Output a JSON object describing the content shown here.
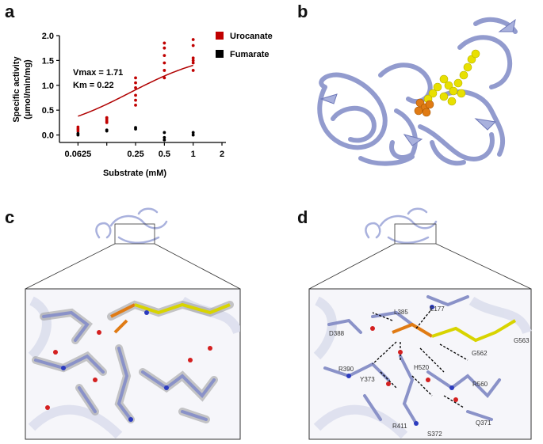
{
  "panels": {
    "a": "a",
    "b": "b",
    "c": "c",
    "d": "d"
  },
  "chart_data": {
    "type": "scatter",
    "xlabel": "Substrate (mM)",
    "ylabel_line1": "Specific activity",
    "ylabel_line2": "(µmol/min/mg)",
    "x_scale": "log2",
    "xlim": [
      0.04,
      2.2
    ],
    "ylim": [
      -0.15,
      2.0
    ],
    "x_ticks": [
      0.0625,
      0.125,
      0.25,
      0.5,
      1,
      2
    ],
    "x_tick_labels": [
      "0.0625",
      "",
      "0.25",
      "0.5",
      "1",
      "2"
    ],
    "y_ticks": [
      0.0,
      0.5,
      1.0,
      1.5,
      2.0
    ],
    "y_tick_labels": [
      "0.0",
      "0.5",
      "1.0",
      "1.5",
      "2.0"
    ],
    "annotation_vmax": "Vmax = 1.71",
    "annotation_km": "Km = 0.22",
    "vmax": 1.71,
    "km": 0.22,
    "legend_position": "top-right",
    "series": [
      {
        "name": "Urocanate",
        "color": "#c00000",
        "points": [
          [
            0.0625,
            0.08
          ],
          [
            0.0625,
            0.12
          ],
          [
            0.0625,
            0.16
          ],
          [
            0.125,
            0.25
          ],
          [
            0.125,
            0.28
          ],
          [
            0.125,
            0.32
          ],
          [
            0.125,
            0.35
          ],
          [
            0.25,
            0.6
          ],
          [
            0.25,
            0.7
          ],
          [
            0.25,
            0.8
          ],
          [
            0.25,
            0.95
          ],
          [
            0.25,
            1.05
          ],
          [
            0.25,
            1.15
          ],
          [
            0.5,
            1.15
          ],
          [
            0.5,
            1.3
          ],
          [
            0.5,
            1.45
          ],
          [
            0.5,
            1.6
          ],
          [
            0.5,
            1.75
          ],
          [
            0.5,
            1.85
          ],
          [
            1,
            1.3
          ],
          [
            1,
            1.45
          ],
          [
            1,
            1.5
          ],
          [
            1,
            1.55
          ],
          [
            1,
            1.8
          ],
          [
            1,
            1.92
          ]
        ]
      },
      {
        "name": "Fumarate",
        "color": "#000000",
        "points": [
          [
            0.0625,
            0.0
          ],
          [
            0.0625,
            0.03
          ],
          [
            0.125,
            0.08
          ],
          [
            0.125,
            0.1
          ],
          [
            0.25,
            0.12
          ],
          [
            0.25,
            0.15
          ],
          [
            0.5,
            -0.1
          ],
          [
            0.5,
            -0.05
          ],
          [
            0.5,
            0.05
          ],
          [
            1,
            0.0
          ],
          [
            1,
            0.05
          ]
        ]
      }
    ]
  },
  "residues_d": [
    "E177",
    "L385",
    "D388",
    "R390",
    "Y373",
    "H520",
    "G562",
    "G563",
    "R560",
    "R411",
    "S372",
    "Q371"
  ],
  "colors": {
    "protein": "#a9b1dd",
    "protein_dark": "#6e78b8",
    "fad": "#e8e000",
    "substrate": "#e07b14",
    "mesh": "#9a9a9a",
    "water": "#d42020"
  }
}
